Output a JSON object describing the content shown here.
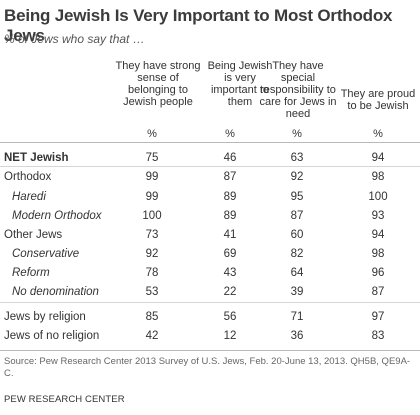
{
  "chart_data": {
    "type": "table",
    "title": "Being Jewish Is Very Important to Most Orthodox Jews",
    "subtitle": "% of Jews who say that …",
    "columns": [
      "They have strong sense of belonging to Jewish people",
      "Being Jewish is very important to them",
      "They have special responsibility to care for Jews in need",
      "They are proud to be Jewish"
    ],
    "unit": "%",
    "rows": [
      {
        "label": "NET Jewish",
        "values": [
          "75",
          "46",
          "63",
          "94"
        ]
      },
      {
        "label": "Orthodox",
        "values": [
          "99",
          "87",
          "92",
          "98"
        ]
      },
      {
        "label": "Haredi",
        "values": [
          "99",
          "89",
          "95",
          "100"
        ]
      },
      {
        "label": "Modern Orthodox",
        "values": [
          "100",
          "89",
          "87",
          "93"
        ]
      },
      {
        "label": "Other Jews",
        "values": [
          "73",
          "41",
          "60",
          "94"
        ]
      },
      {
        "label": "Conservative",
        "values": [
          "92",
          "69",
          "82",
          "98"
        ]
      },
      {
        "label": "Reform",
        "values": [
          "78",
          "43",
          "64",
          "96"
        ]
      },
      {
        "label": "No denomination",
        "values": [
          "53",
          "22",
          "39",
          "87"
        ]
      },
      {
        "label": "Jews by religion",
        "values": [
          "85",
          "56",
          "71",
          "97"
        ]
      },
      {
        "label": "Jews of no religion",
        "values": [
          "42",
          "12",
          "36",
          "83"
        ]
      }
    ],
    "source": "Source: Pew Research Center 2013 Survey of U.S. Jews, Feb. 20-June 13, 2013. QH5B, QE9A-C.",
    "credit": "PEW RESEARCH CENTER"
  }
}
